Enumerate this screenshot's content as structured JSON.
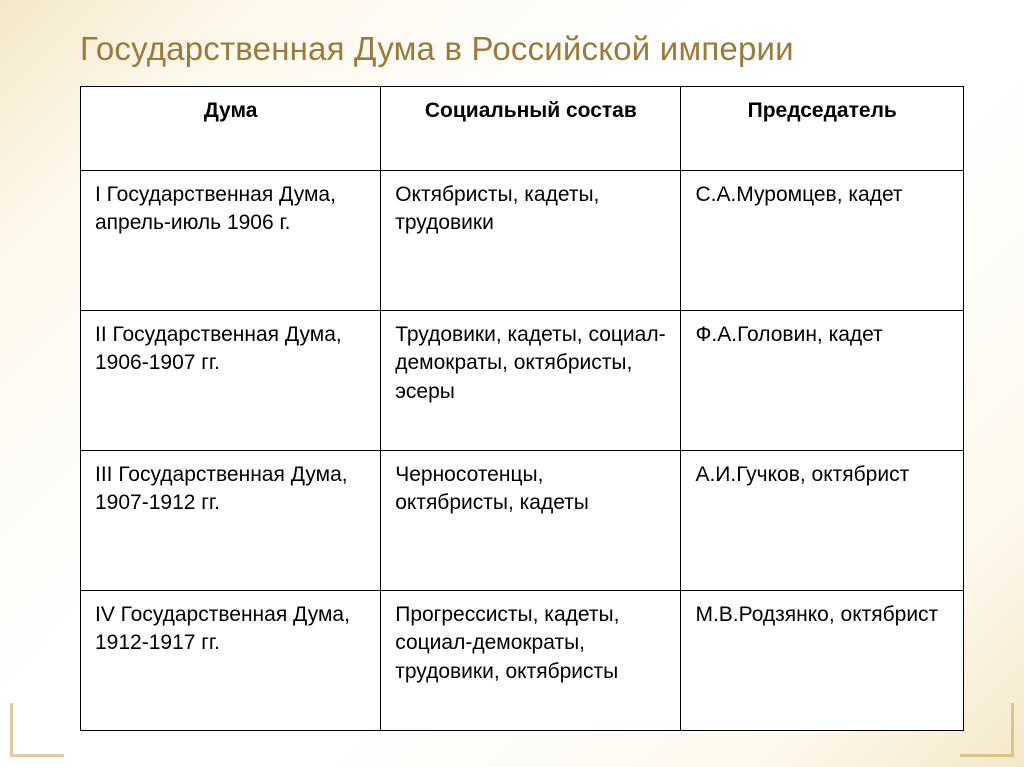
{
  "title": "Государственная Дума в Российской империи",
  "table": {
    "columns": [
      "Дума",
      "Социальный состав",
      "Председатель"
    ],
    "rows": [
      {
        "duma": "I Государственная Дума, апрель-июль 1906 г.",
        "composition": "Октябристы, кадеты, трудовики",
        "chairman": "С.А.Муромцев, кадет"
      },
      {
        "duma": "II Государственная Дума, 1906-1907 гг.",
        "composition": "Трудовики, кадеты, социал-демократы, октябристы, эсеры",
        "chairman": "Ф.А.Головин, кадет"
      },
      {
        "duma": "III Государственная Дума, 1907-1912 гг.",
        "composition": "Черносотенцы, октябристы, кадеты",
        "chairman": "А.И.Гучков, октябрист"
      },
      {
        "duma": "IV Государственная Дума, 1912-1917 гг.",
        "composition": "Прогрессисты, кадеты, социал-демократы, трудовики, октябристы",
        "chairman": "М.В.Родзянко, октябрист"
      }
    ],
    "column_widths_pct": [
      34,
      34,
      32
    ],
    "border_color": "#000000",
    "header_align": "center",
    "cell_align": "left",
    "font_size_pt": 16
  },
  "style": {
    "title_color": "#9d7a3a",
    "title_fontsize_pt": 25,
    "background_gradient": [
      "#f4e8c8",
      "#ffffff",
      "#f4e8c8"
    ],
    "accent_corner_color": "#c8a651"
  }
}
